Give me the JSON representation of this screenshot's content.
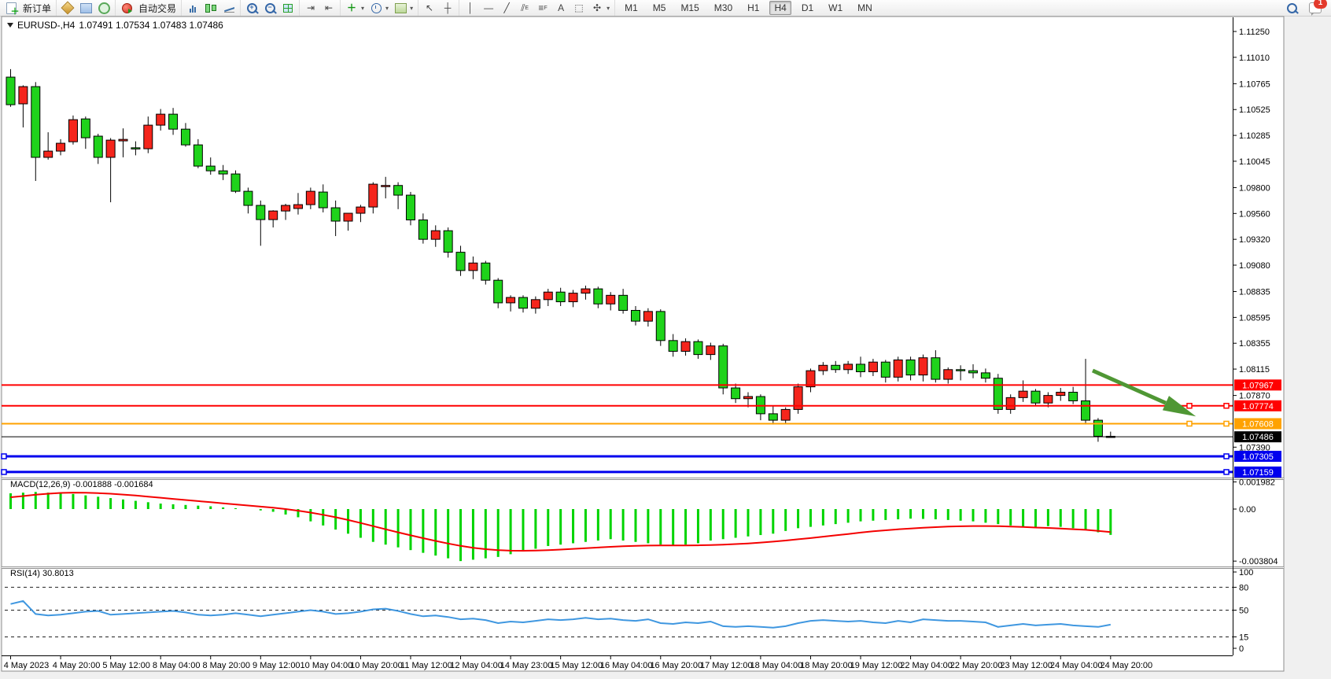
{
  "toolbar": {
    "new_order_label": "新订单",
    "autotrading_label": "自动交易",
    "timeframes": [
      "M1",
      "M5",
      "M15",
      "M30",
      "H1",
      "H4",
      "D1",
      "W1",
      "MN"
    ],
    "active_timeframe": "H4",
    "notification_count": "1"
  },
  "chart": {
    "title_symbol": "EURUSD-,H4",
    "title_ohlc": "1.07491 1.07534 1.07483 1.07486"
  },
  "indicators": {
    "macd_label": "MACD(12,26,9) -0.001888 -0.001684",
    "rsi_label": "RSI(14) 30.8013"
  },
  "chart_data": {
    "type": "candlestick",
    "symbol": "EURUSD-",
    "period": "H4",
    "bull_color": "#f5251c",
    "bear_color": "#1fd31b",
    "wick_color": "#000000",
    "time_labels": [
      "4 May 2023",
      "4 May 20:00",
      "5 May 12:00",
      "8 May 04:00",
      "8 May 20:00",
      "9 May 12:00",
      "10 May 04:00",
      "10 May 20:00",
      "11 May 12:00",
      "12 May 04:00",
      "14 May 23:00",
      "15 May 12:00",
      "16 May 04:00",
      "16 May 20:00",
      "17 May 12:00",
      "18 May 04:00",
      "18 May 20:00",
      "19 May 12:00",
      "22 May 04:00",
      "22 May 20:00",
      "23 May 12:00",
      "24 May 04:00",
      "24 May 20:00"
    ],
    "price_axis_ticks": [
      "1.11250",
      "1.11010",
      "1.10765",
      "1.10525",
      "1.10285",
      "1.10045",
      "1.09800",
      "1.09560",
      "1.09320",
      "1.09080",
      "1.08835",
      "1.08595",
      "1.08355",
      "1.08115",
      "1.07870",
      "1.07390"
    ],
    "candles": [
      [
        1.10826,
        1.109,
        1.1055,
        1.1057
      ],
      [
        1.10578,
        1.1075,
        1.10359,
        1.10738
      ],
      [
        1.10738,
        1.1078,
        1.09862,
        1.10081
      ],
      [
        1.10081,
        1.10314,
        1.1006,
        1.10139
      ],
      [
        1.10139,
        1.1025,
        1.101,
        1.10212
      ],
      [
        1.10226,
        1.1047,
        1.102,
        1.10431
      ],
      [
        1.10438,
        1.1046,
        1.1016,
        1.10263
      ],
      [
        1.10278,
        1.103,
        1.1002,
        1.10081
      ],
      [
        1.10081,
        1.1026,
        1.09664,
        1.10241
      ],
      [
        1.10234,
        1.1035,
        1.10081,
        1.10248
      ],
      [
        1.1017,
        1.1023,
        1.101,
        1.10161
      ],
      [
        1.10161,
        1.1046,
        1.1012,
        1.1038
      ],
      [
        1.1038,
        1.1053,
        1.1033,
        1.10482
      ],
      [
        1.10482,
        1.1054,
        1.1029,
        1.10343
      ],
      [
        1.10343,
        1.104,
        1.1018,
        1.10197
      ],
      [
        1.10197,
        1.1025,
        1.0998,
        1.1
      ],
      [
        1.1,
        1.1008,
        1.0992,
        1.09956
      ],
      [
        1.09956,
        1.1001,
        1.0987,
        1.09927
      ],
      [
        1.09927,
        1.0996,
        1.0975,
        1.09766
      ],
      [
        1.09766,
        1.098,
        1.0956,
        1.09635
      ],
      [
        1.09635,
        1.0968,
        1.0926,
        1.09503
      ],
      [
        1.09503,
        1.0959,
        1.0943,
        1.09583
      ],
      [
        1.09583,
        1.0965,
        1.095,
        1.09635
      ],
      [
        1.09606,
        1.0975,
        1.0955,
        1.09642
      ],
      [
        1.09642,
        1.098,
        1.096,
        1.09766
      ],
      [
        1.09759,
        1.0983,
        1.0957,
        1.09613
      ],
      [
        1.09613,
        1.0968,
        1.0935,
        1.09489
      ],
      [
        1.09489,
        1.0956,
        1.094,
        1.09562
      ],
      [
        1.09562,
        1.0964,
        1.0948,
        1.0962
      ],
      [
        1.0962,
        1.0985,
        1.0956,
        1.09832
      ],
      [
        1.09817,
        1.099,
        1.097,
        1.0982
      ],
      [
        1.0982,
        1.0985,
        1.096,
        1.0973
      ],
      [
        1.0973,
        1.0976,
        1.0945,
        1.095
      ],
      [
        1.095,
        1.0956,
        1.0928,
        1.0932
      ],
      [
        1.0932,
        1.0945,
        1.0925,
        1.094
      ],
      [
        1.094,
        1.0943,
        1.0915,
        1.092
      ],
      [
        1.092,
        1.0926,
        1.0898,
        1.0903
      ],
      [
        1.0903,
        1.0916,
        1.0895,
        1.091
      ],
      [
        1.091,
        1.0912,
        1.089,
        1.0894
      ],
      [
        1.0894,
        1.0896,
        1.0868,
        1.0873
      ],
      [
        1.0873,
        1.088,
        1.0865,
        1.0878
      ],
      [
        1.0878,
        1.088,
        1.0864,
        1.0868
      ],
      [
        1.0868,
        1.0879,
        1.0863,
        1.0876
      ],
      [
        1.0876,
        1.0886,
        1.087,
        1.0883
      ],
      [
        1.0883,
        1.0887,
        1.087,
        1.0874
      ],
      [
        1.0874,
        1.0885,
        1.0869,
        1.0882
      ],
      [
        1.0882,
        1.0889,
        1.0876,
        1.0886
      ],
      [
        1.0886,
        1.0888,
        1.0868,
        1.0872
      ],
      [
        1.0872,
        1.0883,
        1.0866,
        1.088
      ],
      [
        1.088,
        1.0886,
        1.0863,
        1.0866
      ],
      [
        1.0866,
        1.087,
        1.0852,
        1.0856
      ],
      [
        1.0856,
        1.0868,
        1.0851,
        1.0865
      ],
      [
        1.0865,
        1.0867,
        1.0833,
        1.0838
      ],
      [
        1.0838,
        1.0844,
        1.0823,
        1.0828
      ],
      [
        1.0828,
        1.084,
        1.0824,
        1.0837
      ],
      [
        1.0837,
        1.0839,
        1.0821,
        1.0825
      ],
      [
        1.0825,
        1.0836,
        1.082,
        1.0833
      ],
      [
        1.0833,
        1.0835,
        1.0788,
        1.0794
      ],
      [
        1.0794,
        1.0798,
        1.078,
        1.0784
      ],
      [
        1.0784,
        1.079,
        1.0776,
        1.0786
      ],
      [
        1.0786,
        1.0788,
        1.0764,
        1.077
      ],
      [
        1.077,
        1.0777,
        1.076,
        1.0764
      ],
      [
        1.0764,
        1.0776,
        1.0761,
        1.0774
      ],
      [
        1.0774,
        1.0798,
        1.077,
        1.0795
      ],
      [
        1.0795,
        1.0812,
        1.079,
        1.081
      ],
      [
        1.081,
        1.0818,
        1.0806,
        1.0815
      ],
      [
        1.0815,
        1.0819,
        1.0808,
        1.0811
      ],
      [
        1.0811,
        1.0819,
        1.0807,
        1.0816
      ],
      [
        1.0816,
        1.0823,
        1.0804,
        1.0809
      ],
      [
        1.0809,
        1.0821,
        1.0805,
        1.0818
      ],
      [
        1.0818,
        1.082,
        1.0799,
        1.0804
      ],
      [
        1.0804,
        1.0823,
        1.08,
        1.082
      ],
      [
        1.082,
        1.0823,
        1.0801,
        1.0806
      ],
      [
        1.0806,
        1.0825,
        1.08,
        1.0822
      ],
      [
        1.0822,
        1.0829,
        1.0799,
        1.0802
      ],
      [
        1.0802,
        1.0813,
        1.0798,
        1.0811
      ],
      [
        1.0811,
        1.0815,
        1.0801,
        1.081
      ],
      [
        1.081,
        1.0816,
        1.0803,
        1.0808
      ],
      [
        1.0808,
        1.0812,
        1.0799,
        1.0803
      ],
      [
        1.0803,
        1.0807,
        1.077,
        1.0774
      ],
      [
        1.0774,
        1.0788,
        1.077,
        1.0785
      ],
      [
        1.0785,
        1.0801,
        1.0781,
        1.0791
      ],
      [
        1.0791,
        1.0793,
        1.0777,
        1.078
      ],
      [
        1.078,
        1.079,
        1.0776,
        1.0787
      ],
      [
        1.0787,
        1.0794,
        1.0782,
        1.079
      ],
      [
        1.079,
        1.0795,
        1.0779,
        1.0782
      ],
      [
        1.0782,
        1.0821,
        1.076,
        1.0764
      ],
      [
        1.0764,
        1.0766,
        1.0744,
        1.07491
      ],
      [
        1.07491,
        1.07534,
        1.07483,
        1.07486
      ]
    ],
    "hlines": [
      {
        "price": "1.07967",
        "value": 1.07967,
        "color": "#ff0000",
        "width": 2,
        "handles": []
      },
      {
        "price": "1.07774",
        "value": 1.07774,
        "color": "#ff0000",
        "width": 2,
        "handles": [
          1512,
          1559
        ]
      },
      {
        "price": "1.07608",
        "value": 1.07608,
        "color": "#ffa200",
        "width": 2,
        "handles": [
          1512,
          1559
        ]
      },
      {
        "price": "1.07486",
        "value": 1.07486,
        "color": "#000000",
        "width": 1,
        "handles": []
      },
      {
        "price": "1.07305",
        "value": 1.07305,
        "color": "#0000ee",
        "width": 3,
        "handles": [
          5,
          1559
        ]
      },
      {
        "price": "1.07159",
        "value": 1.07159,
        "color": "#0000ee",
        "width": 3,
        "handles": [
          5,
          1559
        ]
      }
    ],
    "macd": {
      "name": "MACD(12,26,9)",
      "current_main": "-0.001888",
      "current_signal": "-0.001684",
      "histogram_color": "#00d400",
      "signal_color": "#f40000",
      "axis_labels": [
        [
          "0.001982",
          0.001982
        ],
        [
          "0.00",
          0
        ],
        [
          "-0.003804",
          -0.003804
        ]
      ],
      "histogram": [
        0.00115,
        0.0012,
        0.00125,
        0.0012,
        0.00115,
        0.0011,
        0.001,
        0.0009,
        0.0008,
        0.0007,
        0.0006,
        0.0005,
        0.0004,
        0.00035,
        0.0003,
        0.00025,
        0.0002,
        0.00012,
        6e-05,
        0,
        -0.0001,
        -0.0002,
        -0.0004,
        -0.0006,
        -0.0009,
        -0.0012,
        -0.0015,
        -0.0018,
        -0.0021,
        -0.0024,
        -0.0026,
        -0.0028,
        -0.003,
        -0.0032,
        -0.0034,
        -0.0036,
        -0.0038,
        -0.0037,
        -0.0036,
        -0.0035,
        -0.0033,
        -0.0031,
        -0.0029,
        -0.0027,
        -0.0026,
        -0.0025,
        -0.0024,
        -0.0023,
        -0.0022,
        -0.0023,
        -0.0024,
        -0.0025,
        -0.0026,
        -0.0027,
        -0.0026,
        -0.0025,
        -0.0023,
        -0.0022,
        -0.0021,
        -0.002,
        -0.0019,
        -0.0018,
        -0.0016,
        -0.0014,
        -0.0013,
        -0.0012,
        -0.0011,
        -0.001,
        -0.0009,
        -0.00085,
        -0.0008,
        -0.00075,
        -0.0007,
        -0.00072,
        -0.00075,
        -0.0008,
        -0.00085,
        -0.0009,
        -0.001,
        -0.0011,
        -0.0012,
        -0.0013,
        -0.0013,
        -0.00125,
        -0.0013,
        -0.0014,
        -0.0015,
        -0.0017,
        -0.001888
      ],
      "signal": [
        0.00086,
        0.00095,
        0.00105,
        0.00112,
        0.00118,
        0.0012,
        0.00119,
        0.00116,
        0.00112,
        0.00106,
        0.00099,
        0.00091,
        0.00083,
        0.00074,
        0.00066,
        0.00058,
        0.0005,
        0.00042,
        0.00034,
        0.00026,
        0.00018,
        0.0001,
        0,
        -0.00012,
        -0.00026,
        -0.00042,
        -0.0006,
        -0.0008,
        -0.00102,
        -0.00125,
        -0.00148,
        -0.0017,
        -0.00192,
        -0.00213,
        -0.00233,
        -0.00252,
        -0.00269,
        -0.00283,
        -0.00293,
        -0.003,
        -0.00304,
        -0.00305,
        -0.00303,
        -0.003,
        -0.00296,
        -0.00291,
        -0.00286,
        -0.00281,
        -0.00276,
        -0.00272,
        -0.00269,
        -0.00267,
        -0.00266,
        -0.00266,
        -0.00266,
        -0.00265,
        -0.00263,
        -0.0026,
        -0.00256,
        -0.00251,
        -0.00245,
        -0.00238,
        -0.0023,
        -0.00221,
        -0.00212,
        -0.00202,
        -0.00192,
        -0.00182,
        -0.00172,
        -0.00163,
        -0.00155,
        -0.00148,
        -0.00142,
        -0.00137,
        -0.00132,
        -0.00128,
        -0.00126,
        -0.00124,
        -0.00124,
        -0.00125,
        -0.00128,
        -0.00131,
        -0.00135,
        -0.00138,
        -0.00142,
        -0.00147,
        -0.00152,
        -0.0016,
        -0.001684
      ]
    },
    "rsi": {
      "name": "RSI(14)",
      "current": "30.8013",
      "line_color": "#3f97e0",
      "levels": [
        80,
        50,
        15
      ],
      "axis_labels": [
        [
          "100",
          100
        ],
        [
          "80",
          80
        ],
        [
          "50",
          50
        ],
        [
          "15",
          15
        ],
        [
          "0",
          0
        ]
      ],
      "values": [
        58,
        62,
        45,
        43,
        44,
        46,
        48,
        49,
        44,
        45,
        46,
        47,
        48,
        49,
        47,
        44,
        43,
        44,
        46,
        44,
        42,
        44,
        46,
        48,
        50,
        48,
        45,
        46,
        48,
        51,
        52,
        49,
        45,
        42,
        43,
        41,
        38,
        39,
        37,
        33,
        35,
        34,
        36,
        38,
        37,
        38,
        40,
        38,
        39,
        37,
        36,
        38,
        33,
        32,
        34,
        33,
        35,
        29,
        28,
        29,
        28,
        27,
        29,
        33,
        36,
        37,
        36,
        35,
        36,
        34,
        33,
        36,
        34,
        38,
        37,
        36,
        36,
        35,
        34,
        28,
        30,
        32,
        30,
        31,
        32,
        30,
        29,
        28,
        31
      ]
    },
    "arrow": {
      "type": "down-trend-arrow",
      "color": "#4f9734",
      "from": [
        1389,
        471
      ],
      "to": [
        1513,
        526
      ]
    }
  }
}
